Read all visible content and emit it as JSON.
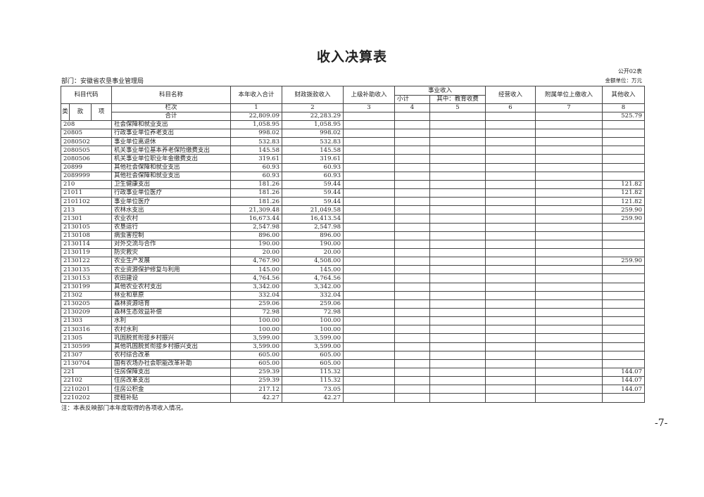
{
  "title": "收入决算表",
  "form_no": "公开02表",
  "unit": "金额单位：万元",
  "department": "部门：安徽省农垦事业管理局",
  "headers": {
    "code": "科目代码",
    "lei": "类",
    "kuan": "款",
    "xiang": "项",
    "name": "科目名称",
    "total": "本年收入合计",
    "fiscal": "财政拨款收入",
    "upper": "上级补助收入",
    "business": "事业收入",
    "subtotal": "小计",
    "education": "其中：教育收费",
    "operating": "经营收入",
    "affiliated": "附属单位上缴收入",
    "other": "其他收入",
    "column_label": "栏次",
    "col_numbers": [
      "1",
      "2",
      "3",
      "4",
      "5",
      "6",
      "7",
      "8"
    ]
  },
  "total_row": {
    "label": "合计",
    "total": "22,809.09",
    "fiscal": "22,283.29",
    "other": "525.79"
  },
  "rows": [
    {
      "code": "208",
      "name": "社会保障和就业支出",
      "total": "1,058.95",
      "fiscal": "1,058.95",
      "other": ""
    },
    {
      "code": "20805",
      "name": "行政事业单位养老支出",
      "total": "998.02",
      "fiscal": "998.02",
      "other": ""
    },
    {
      "code": "2080502",
      "name": "事业单位离退休",
      "total": "532.83",
      "fiscal": "532.83",
      "other": ""
    },
    {
      "code": "2080505",
      "name": "机关事业单位基本养老保险缴费支出",
      "total": "145.58",
      "fiscal": "145.58",
      "other": ""
    },
    {
      "code": "2080506",
      "name": "机关事业单位职业年金缴费支出",
      "total": "319.61",
      "fiscal": "319.61",
      "other": ""
    },
    {
      "code": "20899",
      "name": "其他社会保障和就业支出",
      "total": "60.93",
      "fiscal": "60.93",
      "other": ""
    },
    {
      "code": "2089999",
      "name": "其他社会保障和就业支出",
      "total": "60.93",
      "fiscal": "60.93",
      "other": ""
    },
    {
      "code": "210",
      "name": "卫生健康支出",
      "total": "181.26",
      "fiscal": "59.44",
      "other": "121.82"
    },
    {
      "code": "21011",
      "name": "行政事业单位医疗",
      "total": "181.26",
      "fiscal": "59.44",
      "other": "121.82"
    },
    {
      "code": "2101102",
      "name": "事业单位医疗",
      "total": "181.26",
      "fiscal": "59.44",
      "other": "121.82"
    },
    {
      "code": "213",
      "name": "农林水支出",
      "total": "21,309.48",
      "fiscal": "21,049.58",
      "other": "259.90"
    },
    {
      "code": "21301",
      "name": "农业农村",
      "total": "16,673.44",
      "fiscal": "16,413.54",
      "other": "259.90"
    },
    {
      "code": "2130105",
      "name": "农垦运行",
      "total": "2,547.98",
      "fiscal": "2,547.98",
      "other": ""
    },
    {
      "code": "2130108",
      "name": "病虫害控制",
      "total": "896.00",
      "fiscal": "896.00",
      "other": ""
    },
    {
      "code": "2130114",
      "name": "对外交流与合作",
      "total": "190.00",
      "fiscal": "190.00",
      "other": ""
    },
    {
      "code": "2130119",
      "name": "防灾救灾",
      "total": "20.00",
      "fiscal": "20.00",
      "other": ""
    },
    {
      "code": "2130122",
      "name": "农业生产发展",
      "total": "4,767.90",
      "fiscal": "4,508.00",
      "other": "259.90"
    },
    {
      "code": "2130135",
      "name": "农业资源保护修复与利用",
      "total": "145.00",
      "fiscal": "145.00",
      "other": ""
    },
    {
      "code": "2130153",
      "name": "农田建设",
      "total": "4,764.56",
      "fiscal": "4,764.56",
      "other": ""
    },
    {
      "code": "2130199",
      "name": "其他农业农村支出",
      "total": "3,342.00",
      "fiscal": "3,342.00",
      "other": ""
    },
    {
      "code": "21302",
      "name": "林业和草原",
      "total": "332.04",
      "fiscal": "332.04",
      "other": ""
    },
    {
      "code": "2130205",
      "name": "森林资源培育",
      "total": "259.06",
      "fiscal": "259.06",
      "other": ""
    },
    {
      "code": "2130209",
      "name": "森林生态效益补偿",
      "total": "72.98",
      "fiscal": "72.98",
      "other": ""
    },
    {
      "code": "21303",
      "name": "水利",
      "total": "100.00",
      "fiscal": "100.00",
      "other": ""
    },
    {
      "code": "2130316",
      "name": "农村水利",
      "total": "100.00",
      "fiscal": "100.00",
      "other": ""
    },
    {
      "code": "21305",
      "name": "巩固脱贫衔接乡村振兴",
      "total": "3,599.00",
      "fiscal": "3,599.00",
      "other": ""
    },
    {
      "code": "2130599",
      "name": "其他巩固脱贫衔接乡村振兴支出",
      "total": "3,599.00",
      "fiscal": "3,599.00",
      "other": ""
    },
    {
      "code": "21307",
      "name": "农村综合改革",
      "total": "605.00",
      "fiscal": "605.00",
      "other": ""
    },
    {
      "code": "2130704",
      "name": "国有农场办社会职能改革补助",
      "total": "605.00",
      "fiscal": "605.00",
      "other": ""
    },
    {
      "code": "221",
      "name": "住房保障支出",
      "total": "259.39",
      "fiscal": "115.32",
      "other": "144.07"
    },
    {
      "code": "22102",
      "name": "住房改革支出",
      "total": "259.39",
      "fiscal": "115.32",
      "other": "144.07"
    },
    {
      "code": "2210201",
      "name": "住房公积金",
      "total": "217.12",
      "fiscal": "73.05",
      "other": "144.07"
    },
    {
      "code": "2210202",
      "name": "提租补贴",
      "total": "42.27",
      "fiscal": "42.27",
      "other": ""
    }
  ],
  "note": "注：本表反映部门本年度取得的各项收入情况。",
  "page_number": "-7-"
}
